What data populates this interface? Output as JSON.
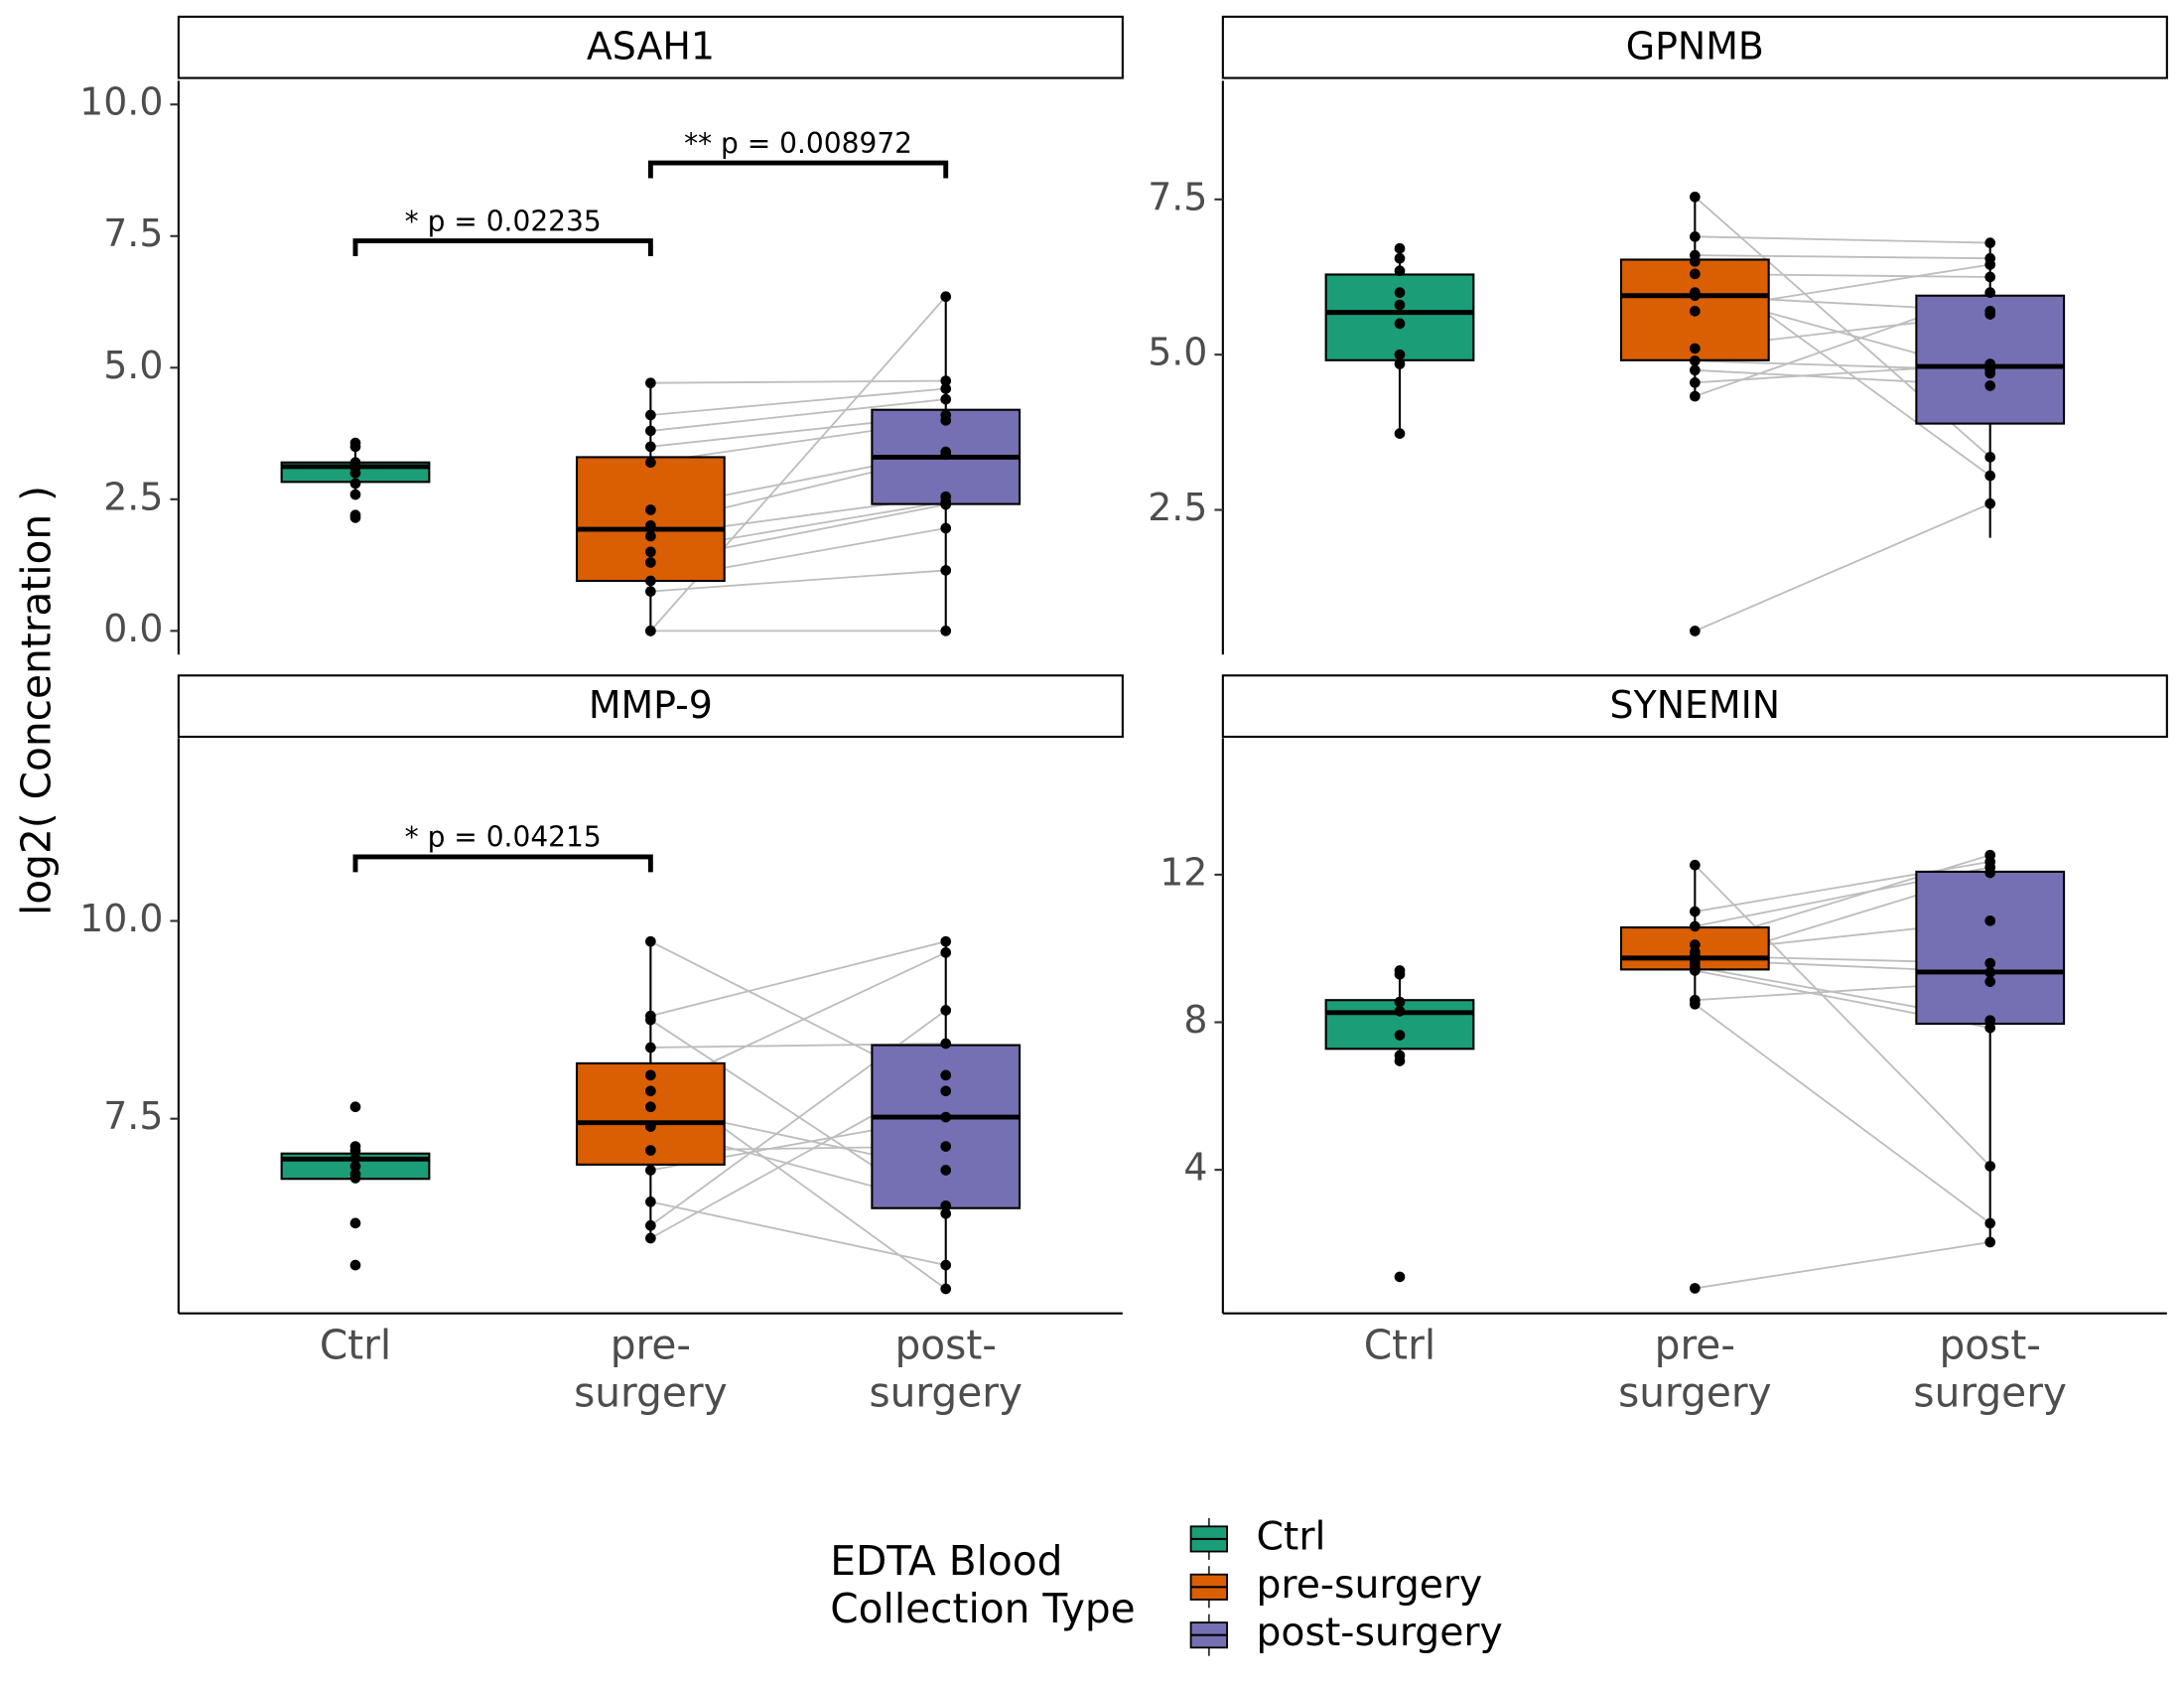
{
  "y_label": "log2( Concentration )",
  "legend": {
    "title": "EDTA Blood Collection Type",
    "items": [
      {
        "name": "Ctrl",
        "color": "#1b9e77"
      },
      {
        "name": "pre-surgery",
        "color": "#d95f02"
      },
      {
        "name": "post-surgery",
        "color": "#7570b3"
      }
    ]
  },
  "chart_data": [
    {
      "type": "box",
      "title": "ASAH1",
      "paired": true,
      "ylim": [
        -0.45,
        10.45
      ],
      "yticks": [
        {
          "value": 0,
          "label": "0.0"
        },
        {
          "value": 2.5,
          "label": "2.5"
        },
        {
          "value": 5,
          "label": "5.0"
        },
        {
          "value": 7.5,
          "label": "7.5"
        },
        {
          "value": 10,
          "label": "10.0"
        }
      ],
      "boxes": [
        {
          "name": "Ctrl",
          "color": "#1b9e77",
          "q1": 2.83,
          "median": 3.12,
          "q3": 3.2,
          "whisker_low": 2.59,
          "whisker_high": 3.57,
          "points": [
            3.57,
            3.5,
            3.2,
            3.1,
            3.0,
            2.8,
            2.59,
            2.2,
            2.15
          ]
        },
        {
          "name": "pre-surgery",
          "color": "#d95f02",
          "q1": 0.95,
          "median": 1.93,
          "q3": 3.3,
          "whisker_low": 0,
          "whisker_high": 4.71,
          "points": [
            4.71,
            4.1,
            3.8,
            3.5,
            3.2,
            2.3,
            2.0,
            1.8,
            1.5,
            1.3,
            0.95,
            0.75,
            0,
            0
          ]
        },
        {
          "name": "post-surgery",
          "color": "#7570b3",
          "q1": 2.41,
          "median": 3.3,
          "q3": 4.2,
          "whisker_low": 0,
          "whisker_high": 6.35,
          "points": [
            4.75,
            4.6,
            4.4,
            4.1,
            4.0,
            3.4,
            3.35,
            2.55,
            2.45,
            2.4,
            1.95,
            1.15,
            6.35,
            0
          ]
        }
      ],
      "annotations": [
        {
          "text": "* p = 0.02235",
          "between": [
            "Ctrl",
            "pre-surgery"
          ],
          "y": 7.41
        },
        {
          "text": "** p = 0.008972",
          "between": [
            "pre-surgery",
            "post-surgery"
          ],
          "y": 8.89
        }
      ]
    },
    {
      "type": "box",
      "title": "GPNMB",
      "paired": true,
      "ylim": [
        0.17,
        9.41
      ],
      "yticks": [
        {
          "value": 2.5,
          "label": "2.5"
        },
        {
          "value": 5,
          "label": "5.0"
        },
        {
          "value": 7.5,
          "label": "7.5"
        }
      ],
      "boxes": [
        {
          "name": "Ctrl",
          "color": "#1b9e77",
          "q1": 4.91,
          "median": 5.68,
          "q3": 6.29,
          "whisker_low": 3.73,
          "whisker_high": 6.71,
          "points": [
            6.71,
            6.55,
            6.35,
            6.0,
            5.8,
            5.5,
            5.0,
            4.85,
            3.73
          ]
        },
        {
          "name": "pre-surgery",
          "color": "#d95f02",
          "q1": 4.91,
          "median": 5.95,
          "q3": 6.53,
          "whisker_low": 4.33,
          "whisker_high": 7.54,
          "points": [
            7.54,
            6.9,
            6.6,
            6.5,
            6.3,
            6.0,
            5.95,
            5.7,
            5.1,
            4.9,
            4.75,
            4.55,
            4.33,
            0.55
          ]
        },
        {
          "name": "post-surgery",
          "color": "#7570b3",
          "q1": 3.89,
          "median": 4.81,
          "q3": 5.95,
          "whisker_low": 2.05,
          "whisker_high": 6.8,
          "points": [
            3.35,
            6.8,
            6.55,
            3.05,
            6.25,
            4.7,
            5.7,
            6.45,
            5.65,
            4.75,
            4.5,
            4.85,
            6.0,
            2.6
          ]
        }
      ],
      "annotations": []
    },
    {
      "type": "box",
      "title": "MMP-9",
      "paired": true,
      "ylim": [
        5.04,
        12.31
      ],
      "yticks": [
        {
          "value": 7.5,
          "label": "7.5"
        },
        {
          "value": 10,
          "label": "10.0"
        }
      ],
      "boxes": [
        {
          "name": "Ctrl",
          "color": "#1b9e77",
          "q1": 6.74,
          "median": 6.99,
          "q3": 7.06,
          "whisker_low": 6.74,
          "whisker_high": 7.15,
          "points": [
            7.65,
            7.15,
            7.1,
            7.0,
            6.9,
            6.8,
            6.75,
            6.18,
            5.65
          ]
        },
        {
          "name": "pre-surgery",
          "color": "#d95f02",
          "q1": 6.92,
          "median": 7.45,
          "q3": 8.2,
          "whisker_low": 5.99,
          "whisker_high": 9.74,
          "points": [
            9.74,
            8.8,
            8.75,
            8.4,
            8.05,
            7.85,
            7.65,
            7.4,
            7.1,
            6.85,
            6.45,
            6.15,
            5.99
          ]
        },
        {
          "name": "post-surgery",
          "color": "#7570b3",
          "q1": 6.37,
          "median": 7.52,
          "q3": 8.43,
          "whisker_low": 5.35,
          "whisker_high": 9.74,
          "points": [
            7.85,
            9.74,
            6.3,
            8.45,
            5.35,
            9.6,
            6.85,
            6.4,
            7.15,
            7.52,
            5.65,
            8.87,
            8.05
          ]
        }
      ],
      "annotations": [
        {
          "text": "* p = 0.04215",
          "between": [
            "Ctrl",
            "pre-surgery"
          ],
          "y": 10.81
        }
      ]
    },
    {
      "type": "box",
      "title": "SYNEMIN",
      "paired": true,
      "ylim": [
        0.11,
        15.7
      ],
      "yticks": [
        4,
        8,
        12
      ],
      "boxes": [
        {
          "name": "Ctrl",
          "color": "#1b9e77",
          "q1": 7.28,
          "median": 8.26,
          "q3": 8.6,
          "whisker_low": 6.9,
          "whisker_high": 9.4,
          "points": [
            9.4,
            9.3,
            8.55,
            8.3,
            7.65,
            7.1,
            6.95,
            1.1
          ]
        },
        {
          "name": "pre-surgery",
          "color": "#d95f02",
          "q1": 9.43,
          "median": 9.74,
          "q3": 10.57,
          "whisker_low": 8.49,
          "whisker_high": 12.26,
          "points": [
            12.26,
            11.0,
            10.6,
            10.1,
            9.9,
            9.8,
            9.7,
            9.6,
            9.5,
            9.4,
            8.6,
            8.49,
            0.79
          ]
        },
        {
          "name": "post-surgery",
          "color": "#7570b3",
          "q1": 7.96,
          "median": 9.36,
          "q3": 12.08,
          "whisker_low": 2.04,
          "whisker_high": 12.53,
          "points": [
            4.1,
            12.35,
            12.2,
            12.53,
            10.75,
            9.6,
            9.35,
            12.05,
            8.05,
            7.85,
            9.1,
            2.55,
            2.04
          ]
        }
      ],
      "annotations": []
    }
  ]
}
